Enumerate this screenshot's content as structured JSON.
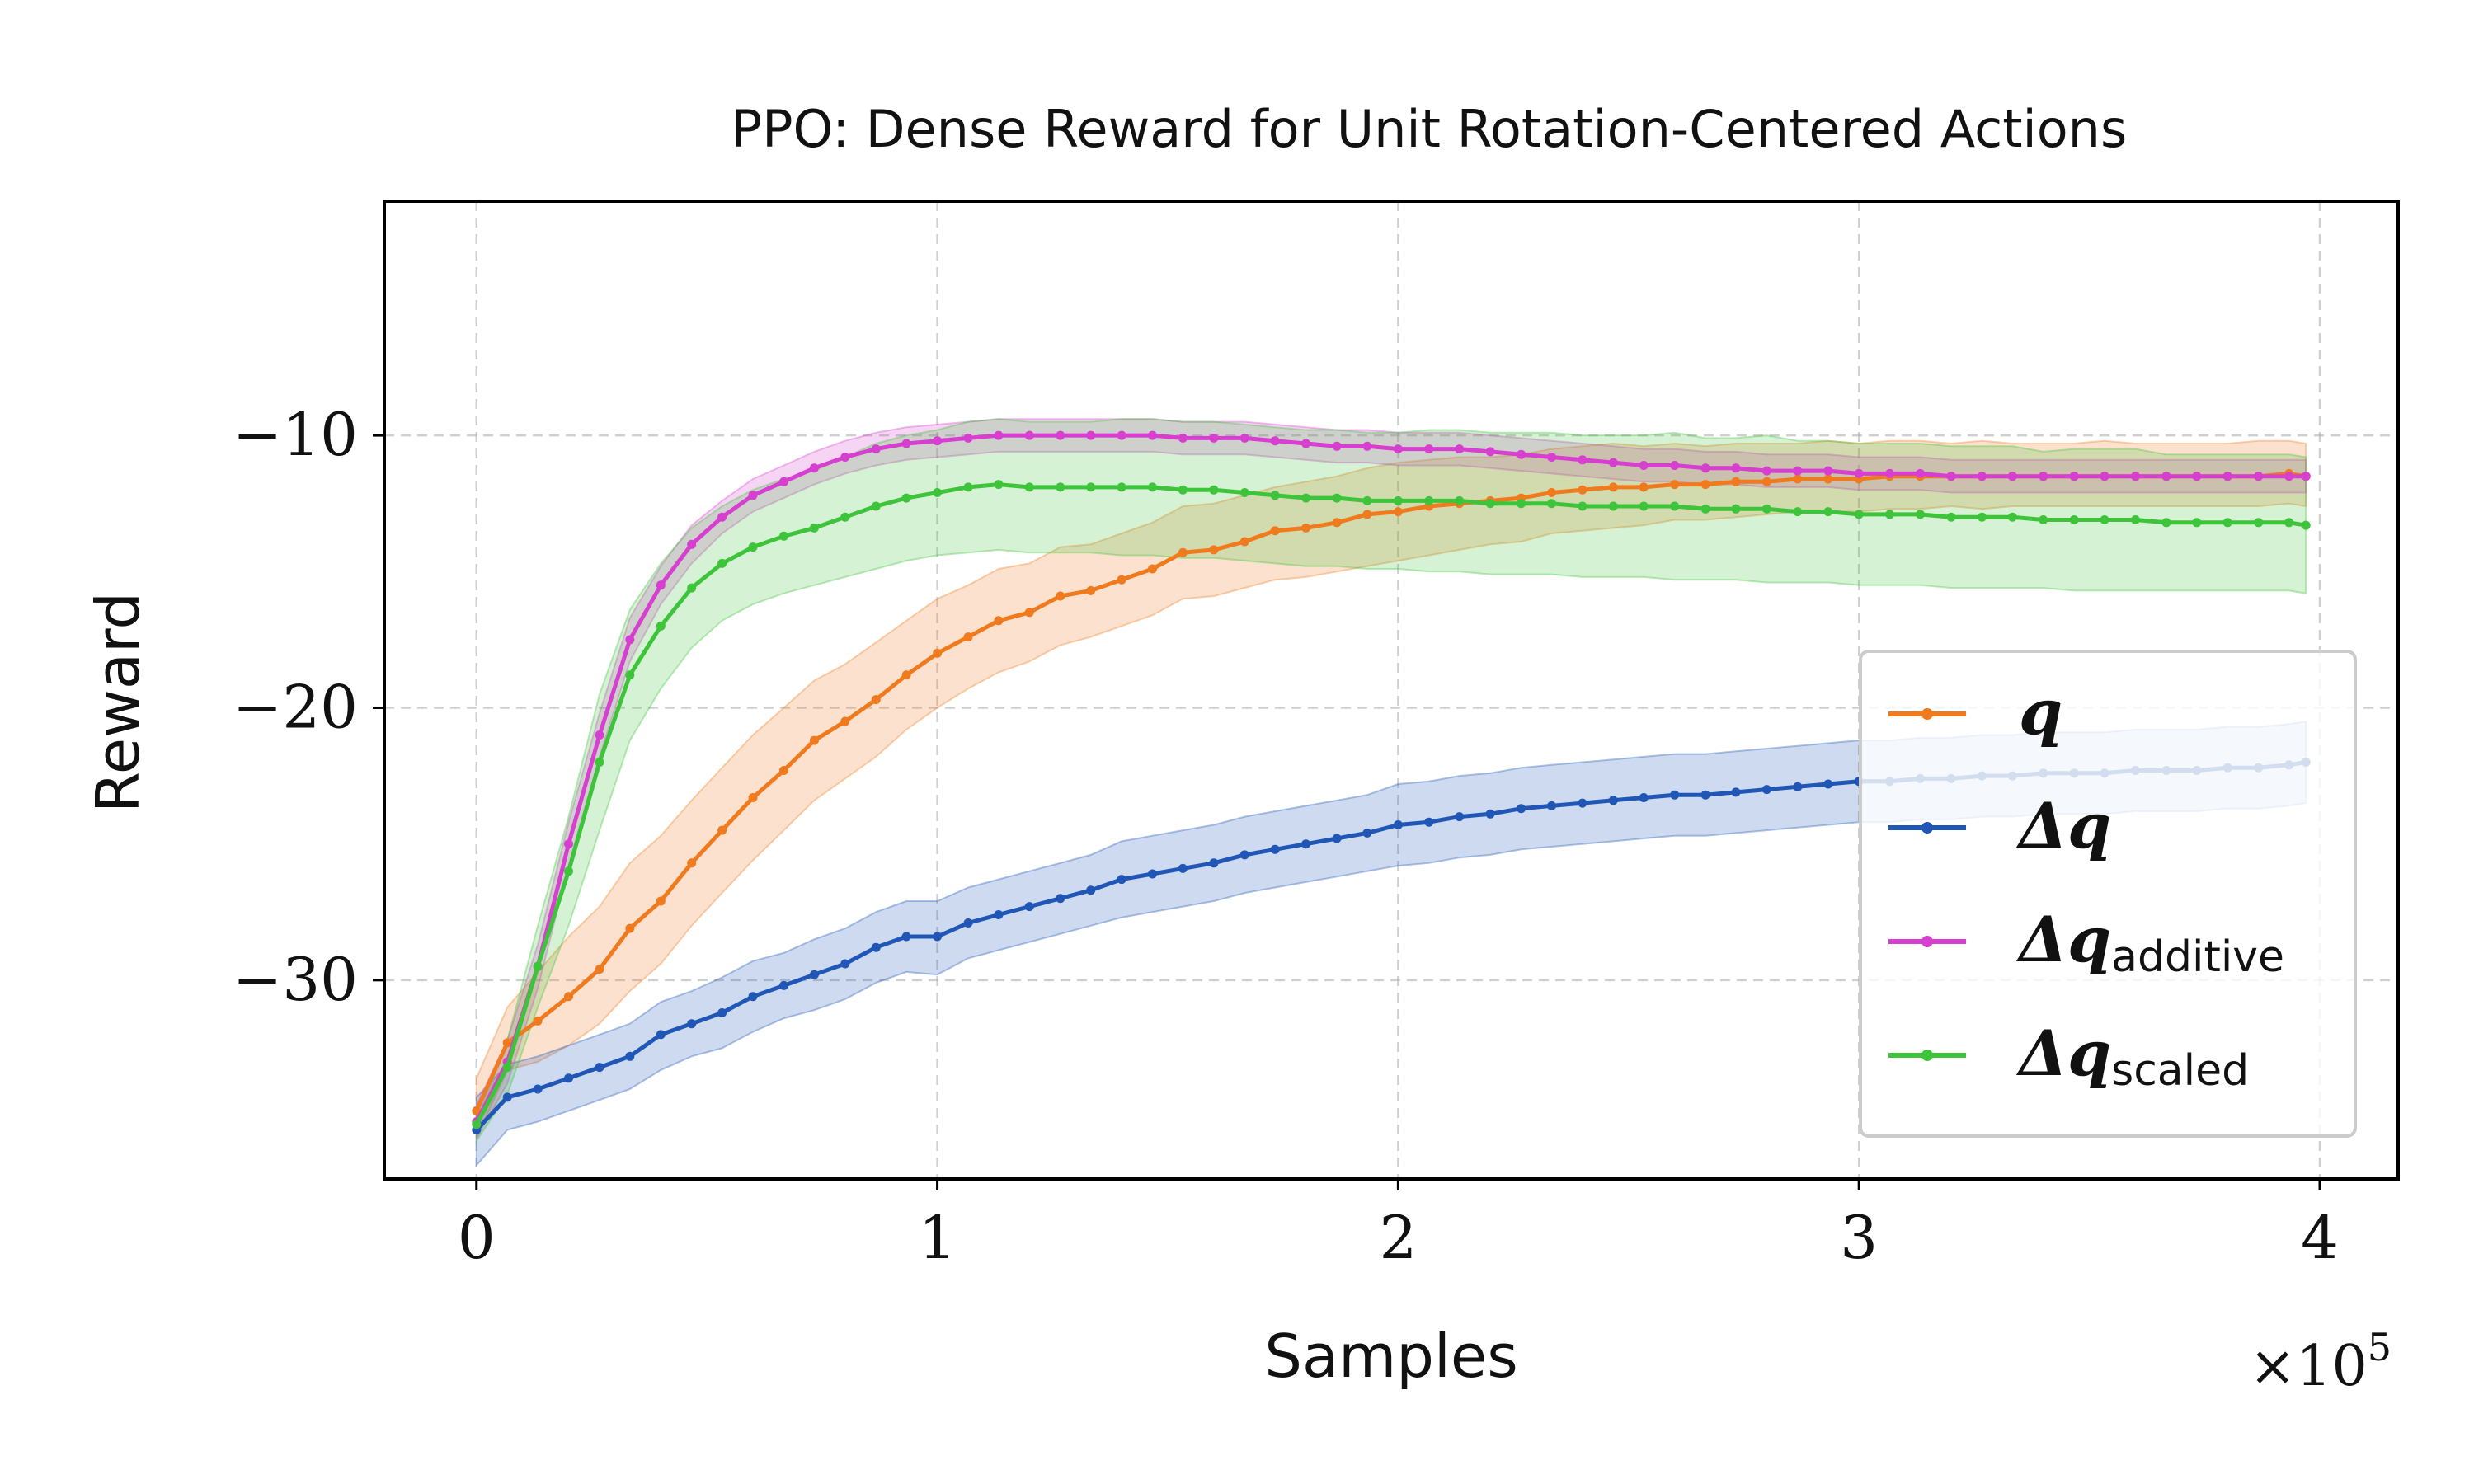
{
  "chart_data": {
    "type": "line",
    "title_prefix": "PPO",
    "title_rest": ": Dense Reward for Unit Rotation-Centered Actions",
    "xlabel": "Samples",
    "ylabel": "Reward",
    "x_multiplier_base": "×10",
    "x_multiplier_exp": "5",
    "xlim": [
      -0.2,
      4.17
    ],
    "ylim": [
      -37.3,
      -1.4
    ],
    "x_ticks": [
      0,
      1,
      2,
      3,
      4
    ],
    "x_tick_labels": [
      "0",
      "1",
      "2",
      "3",
      "4"
    ],
    "y_ticks": [
      -10,
      -20,
      -30
    ],
    "y_tick_labels": [
      "−10",
      "−20",
      "−30"
    ],
    "grid": true,
    "legend_position": "center-right",
    "x": [
      0,
      0.067,
      0.133,
      0.2,
      0.267,
      0.333,
      0.4,
      0.467,
      0.533,
      0.6,
      0.667,
      0.733,
      0.8,
      0.867,
      0.933,
      1.0,
      1.067,
      1.133,
      1.2,
      1.267,
      1.333,
      1.4,
      1.467,
      1.533,
      1.6,
      1.667,
      1.733,
      1.8,
      1.867,
      1.933,
      2.0,
      2.067,
      2.133,
      2.2,
      2.267,
      2.333,
      2.4,
      2.467,
      2.533,
      2.6,
      2.667,
      2.733,
      2.8,
      2.867,
      2.933,
      3.0,
      3.067,
      3.133,
      3.2,
      3.267,
      3.333,
      3.4,
      3.467,
      3.533,
      3.6,
      3.667,
      3.733,
      3.8,
      3.867,
      3.933,
      3.97
    ],
    "series": [
      {
        "name": "q",
        "legend_main": "q",
        "legend_sub": "",
        "color": "#f07b1f",
        "values": [
          -34.8,
          -32.3,
          -31.5,
          -30.6,
          -29.6,
          -28.1,
          -27.1,
          -25.7,
          -24.5,
          -23.3,
          -22.3,
          -21.2,
          -20.5,
          -19.7,
          -18.8,
          -18.0,
          -17.4,
          -16.8,
          -16.5,
          -15.9,
          -15.7,
          -15.3,
          -14.9,
          -14.3,
          -14.2,
          -13.9,
          -13.5,
          -13.4,
          -13.2,
          -12.9,
          -12.8,
          -12.6,
          -12.5,
          -12.4,
          -12.3,
          -12.1,
          -12.0,
          -11.9,
          -11.9,
          -11.8,
          -11.8,
          -11.7,
          -11.7,
          -11.6,
          -11.6,
          -11.6,
          -11.5,
          -11.5,
          -11.5,
          -11.5,
          -11.5,
          -11.5,
          -11.5,
          -11.5,
          -11.5,
          -11.5,
          -11.5,
          -11.5,
          -11.5,
          -11.4,
          -11.5
        ],
        "lower": [
          -35.8,
          -33.3,
          -33.0,
          -32.4,
          -31.6,
          -30.4,
          -29.4,
          -28.0,
          -26.8,
          -25.6,
          -24.5,
          -23.4,
          -22.6,
          -21.8,
          -20.8,
          -20.0,
          -19.3,
          -18.7,
          -18.3,
          -17.7,
          -17.4,
          -17.0,
          -16.6,
          -16.0,
          -15.9,
          -15.6,
          -15.3,
          -15.2,
          -15.0,
          -14.8,
          -14.6,
          -14.4,
          -14.2,
          -14.0,
          -13.9,
          -13.6,
          -13.5,
          -13.4,
          -13.3,
          -13.1,
          -13.1,
          -13.0,
          -12.9,
          -12.8,
          -12.8,
          -12.8,
          -12.7,
          -12.7,
          -12.6,
          -12.7,
          -12.6,
          -12.6,
          -12.6,
          -12.6,
          -12.6,
          -12.6,
          -12.6,
          -12.6,
          -12.6,
          -12.5,
          -12.6
        ],
        "upper": [
          -33.6,
          -31.0,
          -29.7,
          -28.4,
          -27.3,
          -25.7,
          -24.7,
          -23.4,
          -22.2,
          -21.0,
          -20.0,
          -19.0,
          -18.4,
          -17.6,
          -16.8,
          -16.0,
          -15.5,
          -14.9,
          -14.7,
          -14.1,
          -14.0,
          -13.6,
          -13.2,
          -12.6,
          -12.5,
          -12.2,
          -11.9,
          -11.7,
          -11.5,
          -11.2,
          -11.0,
          -10.9,
          -10.8,
          -10.8,
          -10.7,
          -10.5,
          -10.4,
          -10.3,
          -10.4,
          -10.3,
          -10.4,
          -10.3,
          -10.3,
          -10.3,
          -10.2,
          -10.3,
          -10.2,
          -10.2,
          -10.3,
          -10.2,
          -10.3,
          -10.3,
          -10.3,
          -10.2,
          -10.3,
          -10.3,
          -10.3,
          -10.3,
          -10.2,
          -10.2,
          -10.3
        ]
      },
      {
        "name": "Δq",
        "legend_main": "Δq",
        "legend_sub": "",
        "color": "#2057b6",
        "values": [
          -35.5,
          -34.3,
          -34.0,
          -33.6,
          -33.2,
          -32.8,
          -32.0,
          -31.6,
          -31.2,
          -30.6,
          -30.2,
          -29.8,
          -29.4,
          -28.8,
          -28.4,
          -28.4,
          -27.9,
          -27.6,
          -27.3,
          -27.0,
          -26.7,
          -26.3,
          -26.1,
          -25.9,
          -25.7,
          -25.4,
          -25.2,
          -25.0,
          -24.8,
          -24.6,
          -24.3,
          -24.2,
          -24.0,
          -23.9,
          -23.7,
          -23.6,
          -23.5,
          -23.4,
          -23.3,
          -23.2,
          -23.2,
          -23.1,
          -23.0,
          -22.9,
          -22.8,
          -22.7,
          -22.7,
          -22.6,
          -22.6,
          -22.5,
          -22.5,
          -22.4,
          -22.4,
          -22.4,
          -22.3,
          -22.3,
          -22.3,
          -22.2,
          -22.2,
          -22.1,
          -22.0
        ],
        "lower": [
          -36.8,
          -35.5,
          -35.2,
          -34.8,
          -34.4,
          -34.0,
          -33.3,
          -32.8,
          -32.5,
          -31.9,
          -31.4,
          -31.1,
          -30.7,
          -30.1,
          -29.7,
          -29.8,
          -29.2,
          -28.9,
          -28.6,
          -28.3,
          -28.0,
          -27.7,
          -27.5,
          -27.3,
          -27.1,
          -26.8,
          -26.6,
          -26.4,
          -26.2,
          -26.0,
          -25.8,
          -25.7,
          -25.5,
          -25.4,
          -25.2,
          -25.1,
          -25.0,
          -24.9,
          -24.8,
          -24.7,
          -24.7,
          -24.6,
          -24.5,
          -24.4,
          -24.3,
          -24.2,
          -24.2,
          -24.1,
          -24.1,
          -24.0,
          -24.0,
          -23.9,
          -23.9,
          -23.9,
          -23.8,
          -23.8,
          -23.8,
          -23.7,
          -23.7,
          -23.6,
          -23.5
        ],
        "upper": [
          -34.3,
          -33.1,
          -32.8,
          -32.4,
          -32.0,
          -31.6,
          -30.8,
          -30.4,
          -29.9,
          -29.3,
          -29.0,
          -28.5,
          -28.1,
          -27.5,
          -27.1,
          -27.1,
          -26.6,
          -26.3,
          -26.0,
          -25.7,
          -25.4,
          -24.9,
          -24.7,
          -24.5,
          -24.3,
          -24.0,
          -23.8,
          -23.6,
          -23.4,
          -23.2,
          -22.8,
          -22.7,
          -22.5,
          -22.4,
          -22.2,
          -22.1,
          -22.0,
          -21.9,
          -21.8,
          -21.7,
          -21.7,
          -21.6,
          -21.5,
          -21.4,
          -21.3,
          -21.2,
          -21.2,
          -21.1,
          -21.1,
          -21.0,
          -21.0,
          -20.9,
          -20.9,
          -20.9,
          -20.8,
          -20.8,
          -20.8,
          -20.7,
          -20.7,
          -20.6,
          -20.5
        ]
      },
      {
        "name": "Δq additive",
        "legend_main": "Δq",
        "legend_sub": "additive",
        "color": "#d63fcf",
        "values": [
          -35.2,
          -33.0,
          -29.5,
          -25.0,
          -21.0,
          -17.5,
          -15.5,
          -14.0,
          -13.0,
          -12.2,
          -11.7,
          -11.2,
          -10.8,
          -10.5,
          -10.3,
          -10.2,
          -10.1,
          -10.0,
          -10.0,
          -10.0,
          -10.0,
          -10.0,
          -10.0,
          -10.1,
          -10.1,
          -10.1,
          -10.2,
          -10.3,
          -10.4,
          -10.4,
          -10.5,
          -10.5,
          -10.5,
          -10.6,
          -10.7,
          -10.8,
          -10.9,
          -11.0,
          -11.1,
          -11.1,
          -11.2,
          -11.2,
          -11.3,
          -11.3,
          -11.3,
          -11.4,
          -11.4,
          -11.4,
          -11.5,
          -11.5,
          -11.5,
          -11.5,
          -11.5,
          -11.5,
          -11.5,
          -11.5,
          -11.5,
          -11.5,
          -11.5,
          -11.5,
          -11.5
        ],
        "lower": [
          -35.8,
          -33.8,
          -30.3,
          -25.8,
          -21.8,
          -18.3,
          -16.2,
          -14.7,
          -13.6,
          -12.8,
          -12.3,
          -11.8,
          -11.4,
          -11.1,
          -10.9,
          -10.8,
          -10.7,
          -10.6,
          -10.6,
          -10.6,
          -10.6,
          -10.6,
          -10.6,
          -10.7,
          -10.7,
          -10.7,
          -10.8,
          -10.9,
          -11.0,
          -11.0,
          -11.1,
          -11.1,
          -11.1,
          -11.2,
          -11.3,
          -11.4,
          -11.5,
          -11.6,
          -11.7,
          -11.7,
          -11.8,
          -11.8,
          -11.9,
          -11.9,
          -11.9,
          -12.0,
          -12.0,
          -12.0,
          -12.1,
          -12.1,
          -12.1,
          -12.1,
          -12.1,
          -12.1,
          -12.1,
          -12.1,
          -12.1,
          -12.1,
          -12.1,
          -12.1,
          -12.1
        ],
        "upper": [
          -34.6,
          -32.2,
          -28.7,
          -24.2,
          -20.2,
          -16.7,
          -14.8,
          -13.3,
          -12.4,
          -11.6,
          -11.1,
          -10.6,
          -10.2,
          -9.9,
          -9.7,
          -9.6,
          -9.5,
          -9.4,
          -9.4,
          -9.4,
          -9.4,
          -9.4,
          -9.4,
          -9.5,
          -9.5,
          -9.5,
          -9.6,
          -9.7,
          -9.8,
          -9.8,
          -9.9,
          -9.9,
          -9.9,
          -10.0,
          -10.1,
          -10.2,
          -10.3,
          -10.4,
          -10.5,
          -10.5,
          -10.6,
          -10.6,
          -10.7,
          -10.7,
          -10.7,
          -10.8,
          -10.8,
          -10.8,
          -10.9,
          -10.9,
          -10.9,
          -10.9,
          -10.9,
          -10.9,
          -10.9,
          -10.9,
          -10.9,
          -10.9,
          -10.9,
          -10.9,
          -10.9
        ]
      },
      {
        "name": "Δq scaled",
        "legend_main": "Δq",
        "legend_sub": "scaled",
        "color": "#3ec43a",
        "values": [
          -35.3,
          -33.2,
          -29.5,
          -26.0,
          -22.0,
          -18.8,
          -17.0,
          -15.6,
          -14.7,
          -14.1,
          -13.7,
          -13.4,
          -13.0,
          -12.6,
          -12.3,
          -12.1,
          -11.9,
          -11.8,
          -11.9,
          -11.9,
          -11.9,
          -11.9,
          -11.9,
          -12.0,
          -12.0,
          -12.1,
          -12.2,
          -12.3,
          -12.3,
          -12.4,
          -12.4,
          -12.4,
          -12.4,
          -12.5,
          -12.5,
          -12.5,
          -12.6,
          -12.6,
          -12.6,
          -12.6,
          -12.7,
          -12.7,
          -12.7,
          -12.8,
          -12.8,
          -12.9,
          -12.9,
          -12.9,
          -13.0,
          -13.0,
          -13.0,
          -13.1,
          -13.1,
          -13.1,
          -13.1,
          -13.2,
          -13.2,
          -13.2,
          -13.2,
          -13.2,
          -13.3
        ],
        "lower": [
          -35.9,
          -34.2,
          -31.0,
          -28.0,
          -24.5,
          -21.2,
          -19.3,
          -17.8,
          -16.8,
          -16.2,
          -15.8,
          -15.5,
          -15.2,
          -14.9,
          -14.6,
          -14.4,
          -14.3,
          -14.2,
          -14.3,
          -14.3,
          -14.3,
          -14.4,
          -14.4,
          -14.5,
          -14.5,
          -14.6,
          -14.7,
          -14.8,
          -14.8,
          -14.9,
          -14.9,
          -15.0,
          -15.0,
          -15.1,
          -15.1,
          -15.1,
          -15.2,
          -15.2,
          -15.2,
          -15.3,
          -15.3,
          -15.3,
          -15.4,
          -15.4,
          -15.4,
          -15.5,
          -15.5,
          -15.5,
          -15.6,
          -15.6,
          -15.6,
          -15.6,
          -15.7,
          -15.7,
          -15.7,
          -15.7,
          -15.7,
          -15.7,
          -15.7,
          -15.7,
          -15.8
        ],
        "upper": [
          -34.7,
          -32.2,
          -28.0,
          -24.0,
          -19.5,
          -16.4,
          -14.7,
          -13.4,
          -12.6,
          -12.0,
          -11.6,
          -11.3,
          -10.8,
          -10.3,
          -10.0,
          -9.8,
          -9.5,
          -9.4,
          -9.5,
          -9.5,
          -9.5,
          -9.4,
          -9.4,
          -9.5,
          -9.5,
          -9.6,
          -9.7,
          -9.8,
          -9.8,
          -9.9,
          -9.9,
          -9.8,
          -9.8,
          -9.9,
          -9.9,
          -9.9,
          -10.0,
          -10.0,
          -10.0,
          -9.9,
          -10.1,
          -10.1,
          -10.0,
          -10.2,
          -10.2,
          -10.3,
          -10.3,
          -10.3,
          -10.4,
          -10.4,
          -10.4,
          -10.6,
          -10.5,
          -10.5,
          -10.5,
          -10.7,
          -10.7,
          -10.7,
          -10.7,
          -10.7,
          -10.8
        ]
      }
    ]
  }
}
